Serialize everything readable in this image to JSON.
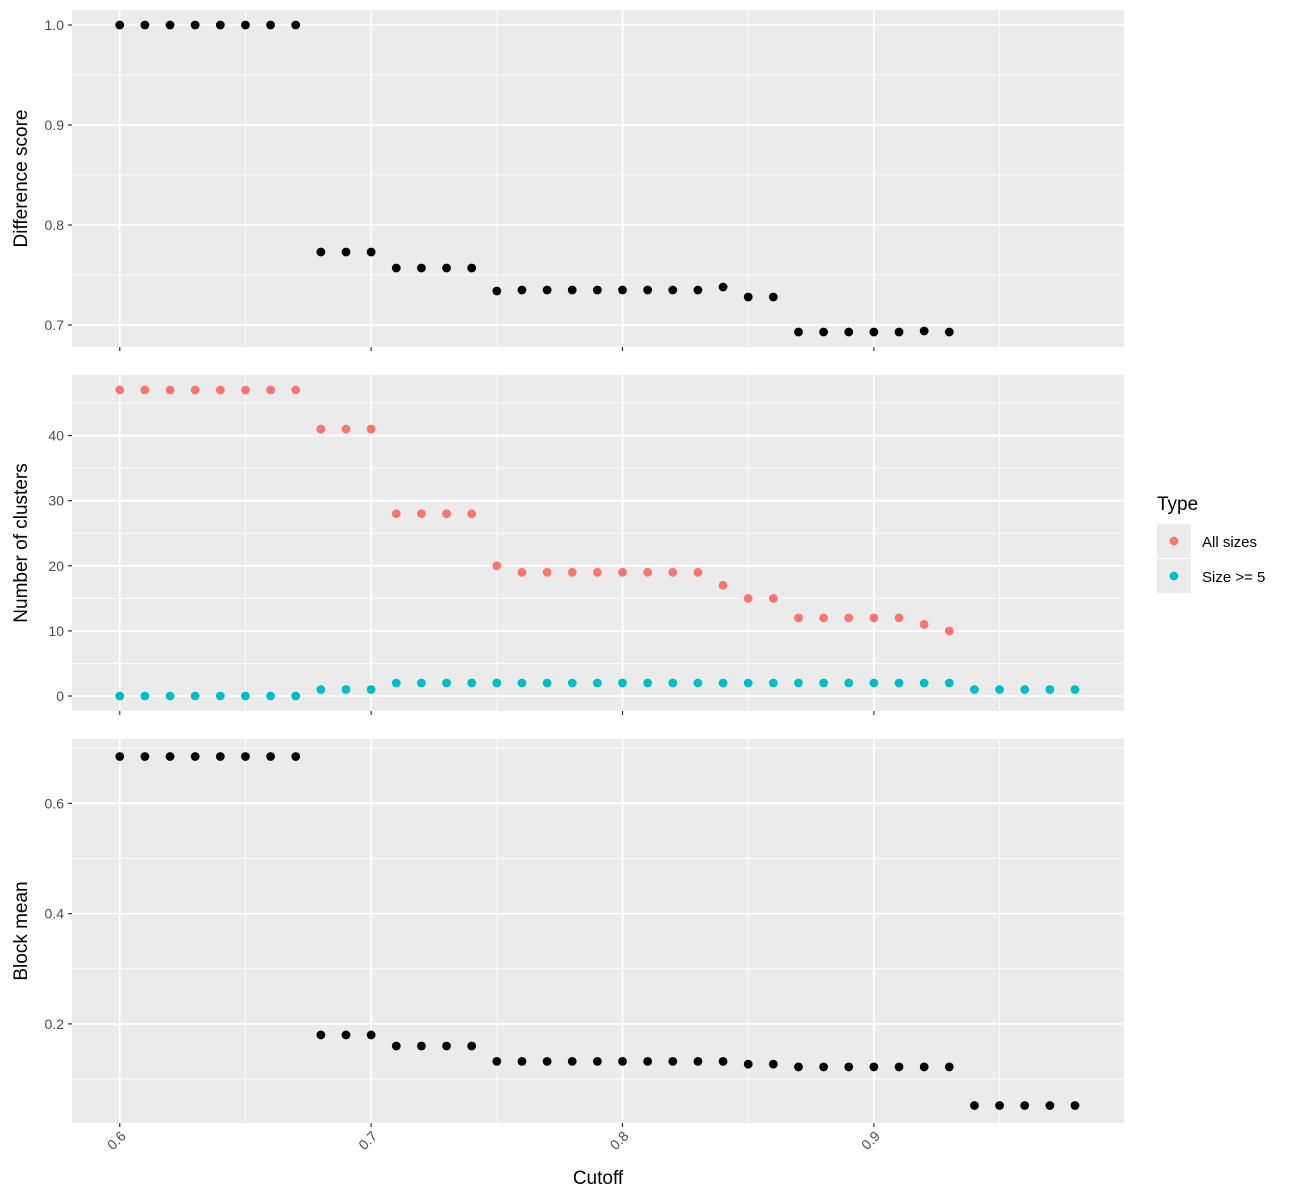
{
  "chart_data": {
    "type": "scatter",
    "x_axis": {
      "label": "Cutoff",
      "lim": [
        0.581,
        0.9995
      ],
      "ticks": [
        0.6,
        0.7,
        0.8,
        0.9
      ],
      "tick_labels": [
        "0.6",
        "0.7",
        "0.8",
        "0.9"
      ]
    },
    "legend": {
      "title": "Type",
      "position": "right",
      "entries": [
        {
          "label": "All sizes",
          "color": "#F8766D"
        },
        {
          "label": "Size >= 5",
          "color": "#00BFC4"
        }
      ]
    },
    "panels": [
      {
        "ylabel": "Difference score",
        "ylim": [
          0.678,
          1.015
        ],
        "yticks": [
          0.7,
          0.8,
          0.9,
          1.0
        ],
        "ytick_labels": [
          "0.7",
          "0.8",
          "0.9",
          "1.0"
        ],
        "series": [
          {
            "color": "#000000",
            "x": [
              0.6,
              0.61,
              0.62,
              0.63,
              0.64,
              0.65,
              0.66,
              0.67,
              0.68,
              0.69,
              0.7,
              0.71,
              0.72,
              0.73,
              0.74,
              0.75,
              0.76,
              0.77,
              0.78,
              0.79,
              0.8,
              0.81,
              0.82,
              0.83,
              0.84,
              0.85,
              0.86,
              0.87,
              0.88,
              0.89,
              0.9,
              0.91,
              0.92,
              0.93
            ],
            "y": [
              1.0,
              1.0,
              1.0,
              1.0,
              1.0,
              1.0,
              1.0,
              1.0,
              0.773,
              0.773,
              0.773,
              0.757,
              0.757,
              0.757,
              0.757,
              0.734,
              0.735,
              0.735,
              0.735,
              0.735,
              0.735,
              0.735,
              0.735,
              0.735,
              0.738,
              0.728,
              0.728,
              0.693,
              0.693,
              0.693,
              0.693,
              0.693,
              0.694,
              0.693
            ]
          }
        ]
      },
      {
        "ylabel": "Number of clusters",
        "ylim": [
          -2.3,
          49.3
        ],
        "yticks": [
          0,
          10,
          20,
          30,
          40
        ],
        "ytick_labels": [
          "0",
          "10",
          "20",
          "30",
          "40"
        ],
        "series": [
          {
            "name": "All sizes",
            "color": "#F8766D",
            "x": [
              0.6,
              0.61,
              0.62,
              0.63,
              0.64,
              0.65,
              0.66,
              0.67,
              0.68,
              0.69,
              0.7,
              0.71,
              0.72,
              0.73,
              0.74,
              0.75,
              0.76,
              0.77,
              0.78,
              0.79,
              0.8,
              0.81,
              0.82,
              0.83,
              0.84,
              0.85,
              0.86,
              0.87,
              0.88,
              0.89,
              0.9,
              0.91,
              0.92,
              0.93
            ],
            "y": [
              47,
              47,
              47,
              47,
              47,
              47,
              47,
              47,
              41,
              41,
              41,
              28,
              28,
              28,
              28,
              20,
              19,
              19,
              19,
              19,
              19,
              19,
              19,
              19,
              17,
              15,
              15,
              12,
              12,
              12,
              12,
              12,
              11,
              10
            ]
          },
          {
            "name": "Size >= 5",
            "color": "#00BFC4",
            "x": [
              0.6,
              0.61,
              0.62,
              0.63,
              0.64,
              0.65,
              0.66,
              0.67,
              0.68,
              0.69,
              0.7,
              0.71,
              0.72,
              0.73,
              0.74,
              0.75,
              0.76,
              0.77,
              0.78,
              0.79,
              0.8,
              0.81,
              0.82,
              0.83,
              0.84,
              0.85,
              0.86,
              0.87,
              0.88,
              0.89,
              0.9,
              0.91,
              0.92,
              0.93,
              0.94,
              0.95,
              0.96,
              0.97,
              0.98
            ],
            "y": [
              0,
              0,
              0,
              0,
              0,
              0,
              0,
              0,
              1,
              1,
              1,
              2,
              2,
              2,
              2,
              2,
              2,
              2,
              2,
              2,
              2,
              2,
              2,
              2,
              2,
              2,
              2,
              2,
              2,
              2,
              2,
              2,
              2,
              2,
              1,
              1,
              1,
              1,
              1
            ]
          }
        ]
      },
      {
        "ylabel": "Block mean",
        "ylim": [
          0.0203,
          0.7167
        ],
        "yticks": [
          0.2,
          0.4,
          0.6
        ],
        "ytick_labels": [
          "0.2",
          "0.4",
          "0.6"
        ],
        "series": [
          {
            "color": "#000000",
            "x": [
              0.6,
              0.61,
              0.62,
              0.63,
              0.64,
              0.65,
              0.66,
              0.67,
              0.68,
              0.69,
              0.7,
              0.71,
              0.72,
              0.73,
              0.74,
              0.75,
              0.76,
              0.77,
              0.78,
              0.79,
              0.8,
              0.81,
              0.82,
              0.83,
              0.84,
              0.85,
              0.86,
              0.87,
              0.88,
              0.89,
              0.9,
              0.91,
              0.92,
              0.93,
              0.94,
              0.95,
              0.96,
              0.97,
              0.98
            ],
            "y": [
              0.685,
              0.685,
              0.685,
              0.685,
              0.685,
              0.685,
              0.685,
              0.685,
              0.18,
              0.18,
              0.18,
              0.16,
              0.16,
              0.16,
              0.16,
              0.132,
              0.132,
              0.132,
              0.132,
              0.132,
              0.132,
              0.132,
              0.132,
              0.132,
              0.132,
              0.127,
              0.127,
              0.122,
              0.122,
              0.122,
              0.122,
              0.122,
              0.122,
              0.122,
              0.052,
              0.052,
              0.052,
              0.052,
              0.052
            ]
          }
        ]
      }
    ]
  }
}
